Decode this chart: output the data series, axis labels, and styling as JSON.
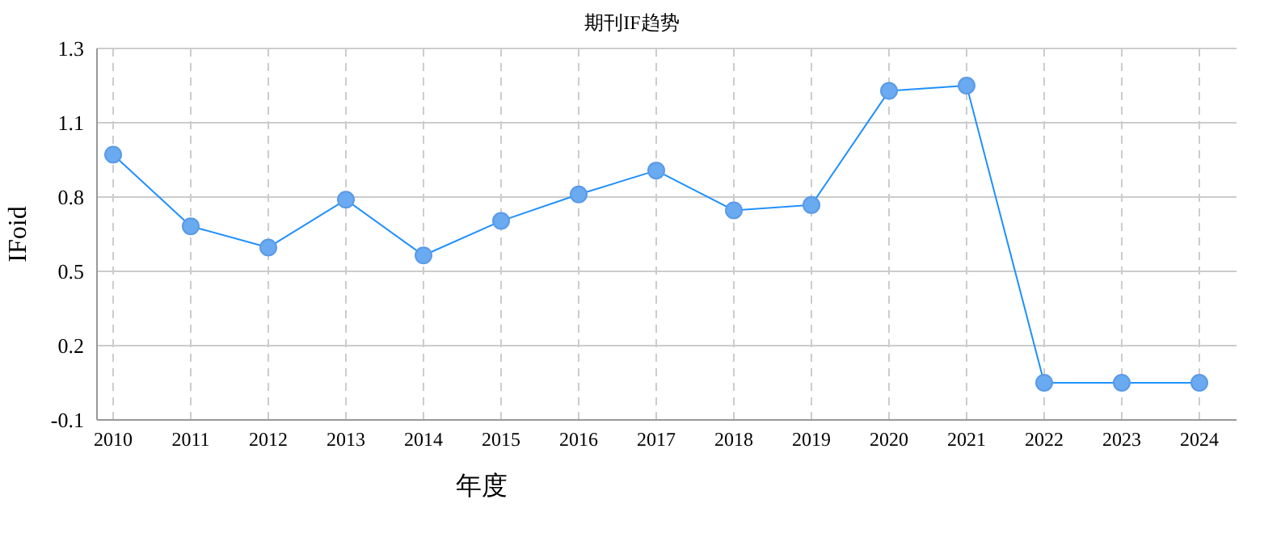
{
  "chart_data": {
    "type": "line",
    "title": "期刊IF趋势",
    "xlabel": "年度",
    "ylabel": "IFoid",
    "categories": [
      "2010",
      "2011",
      "2012",
      "2013",
      "2014",
      "2015",
      "2016",
      "2017",
      "2018",
      "2019",
      "2020",
      "2021",
      "2022",
      "2023",
      "2024"
    ],
    "series": [
      {
        "color": "#1e90ff",
        "values": [
          0.94,
          0.67,
          0.59,
          0.77,
          0.56,
          0.69,
          0.79,
          0.88,
          0.73,
          0.75,
          1.18,
          1.2,
          0.08,
          0.08,
          0.08
        ]
      }
    ],
    "ylim": [
      -0.06,
      1.34
    ],
    "yticks": [
      {
        "value": -0.06,
        "label": "-0.1"
      },
      {
        "value": 0.22,
        "label": "0.2"
      },
      {
        "value": 0.5,
        "label": "0.5"
      },
      {
        "value": 0.78,
        "label": "0.8"
      },
      {
        "value": 1.06,
        "label": "1.1"
      },
      {
        "value": 1.34,
        "label": "1.3"
      }
    ],
    "grid": true,
    "marker": "circle",
    "line_style": "solid"
  }
}
